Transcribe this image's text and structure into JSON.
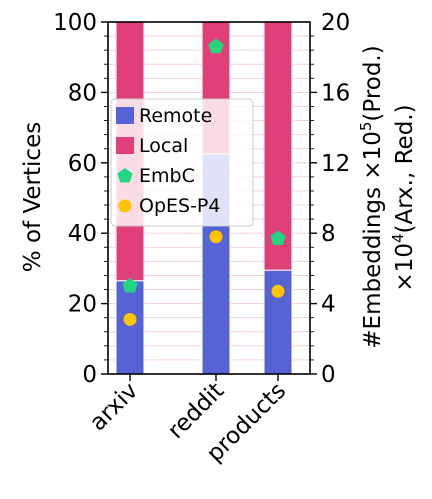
{
  "chart_data": {
    "type": "bar",
    "categories": [
      "arxiv",
      "reddit",
      "products"
    ],
    "ylabel": "% of Vertices",
    "ylim": [
      0,
      100
    ],
    "yticks": [
      "0",
      "20",
      "40",
      "60",
      "80",
      "100"
    ],
    "y2label_line1": "#Embeddings ×10",
    "y2label_sup": "5",
    "y2label_line1_suffix": "(Prod.)",
    "y2label_line2_prefix": "×10",
    "y2label_line2_sup": "4",
    "y2label_line2_suffix": "(Arx., Red.)",
    "y2lim": [
      0,
      20
    ],
    "y2ticks": [
      "0",
      "4",
      "8",
      "12",
      "16",
      "20"
    ],
    "series": [
      {
        "name": "Remote",
        "kind": "bar",
        "color": "#5563d6",
        "values": [
          26.5,
          62.5,
          29.5
        ]
      },
      {
        "name": "Local",
        "kind": "bar",
        "color": "#e0407a",
        "values": [
          73.5,
          37.5,
          70.5
        ]
      },
      {
        "name": "EmbC",
        "kind": "marker",
        "marker": "pentagon",
        "color": "#22d67f",
        "axis": "right",
        "values": [
          5.0,
          18.6,
          7.7
        ]
      },
      {
        "name": "OpES-P4",
        "kind": "marker",
        "marker": "circle",
        "color": "#ffc400",
        "axis": "right",
        "values": [
          3.1,
          7.8,
          4.7
        ]
      }
    ],
    "legend": {
      "placement": "upper-left",
      "items": [
        "Remote",
        "Local",
        "EmbC",
        "OpES-P4"
      ]
    },
    "grid": "y-minor"
  }
}
